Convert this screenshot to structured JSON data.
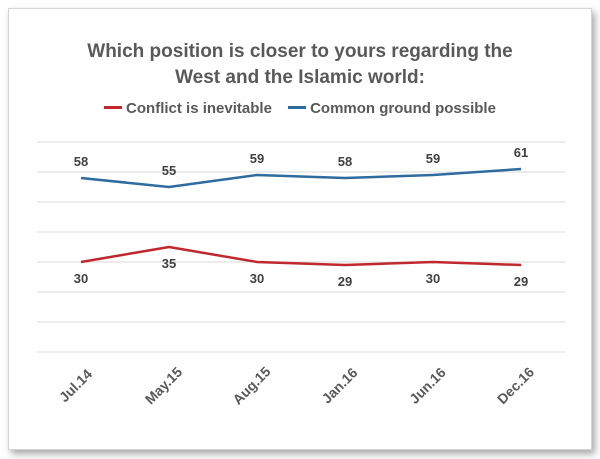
{
  "chart_data": {
    "type": "line",
    "title_lines": [
      "Which position is closer to yours regarding the",
      "West and the Islamic world:"
    ],
    "categories": [
      "Jul.14",
      "May.15",
      "Aug.15",
      "Jan.16",
      "Jun.16",
      "Dec.16"
    ],
    "series": [
      {
        "name": "Conflict is inevitable",
        "values": [
          30,
          35,
          30,
          29,
          30,
          29
        ],
        "color": "#c0282d"
      },
      {
        "name": "Common ground possible",
        "values": [
          58,
          55,
          59,
          58,
          59,
          61
        ],
        "color": "#2e6b9e"
      }
    ],
    "ylim": [
      0,
      70
    ],
    "grid": true,
    "legend_position": "top-center"
  }
}
